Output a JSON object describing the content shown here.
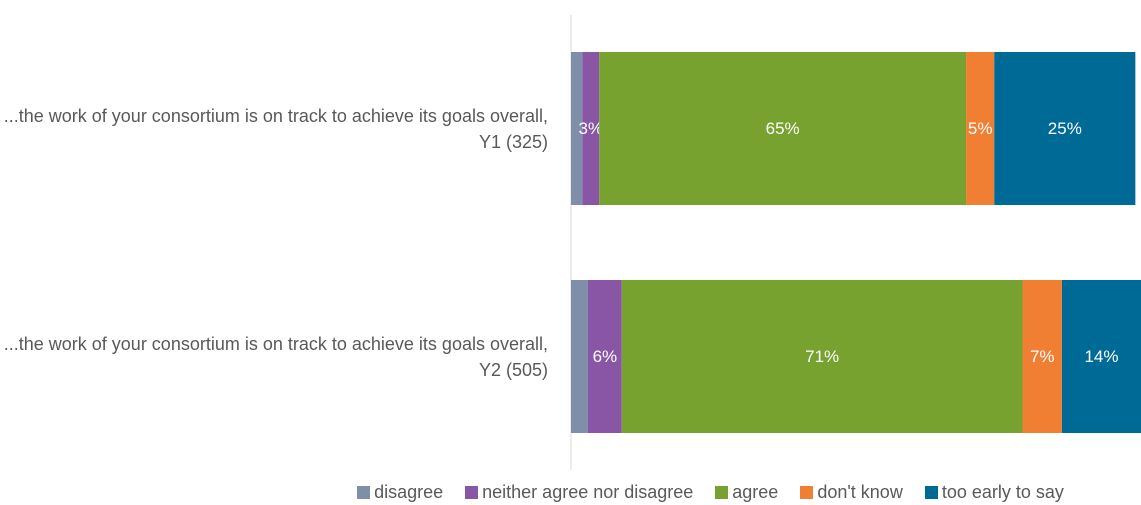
{
  "chart_data": {
    "type": "stacked_barh",
    "categories": [
      "...the work of your consortium is on track to achieve its goals overall, Y1 (325)",
      "...the work of your consortium is on track to achieve its goals overall, Y2 (505)"
    ],
    "series": [
      {
        "name": "disagree",
        "color": "#7f8fa9",
        "values": [
          2,
          3
        ]
      },
      {
        "name": "neither agree nor disagree",
        "color": "#8955a5",
        "values": [
          3,
          6
        ],
        "value_labels": [
          "3%",
          "6%"
        ]
      },
      {
        "name": "agree",
        "color": "#77a22f",
        "values": [
          65,
          71
        ],
        "value_labels": [
          "65%",
          "71%"
        ]
      },
      {
        "name": "don't know",
        "color": "#f07f34",
        "values": [
          5,
          7
        ],
        "value_labels": [
          "5%",
          "7%"
        ]
      },
      {
        "name": "too early to say",
        "color": "#006a97",
        "values": [
          25,
          14
        ],
        "value_labels": [
          "25%",
          "14%"
        ]
      }
    ],
    "xlim": [
      0,
      101
    ],
    "legend": "bottom"
  }
}
